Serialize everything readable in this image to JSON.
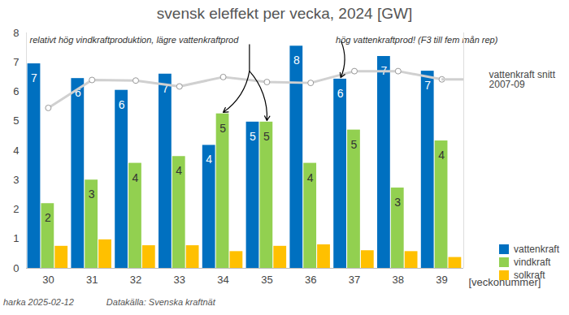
{
  "chart_data": {
    "type": "bar",
    "title": "svensk eleffekt per vecka, 2024 [GW]",
    "x_label": "[veckonummer]",
    "categories": [
      "30",
      "31",
      "32",
      "33",
      "34",
      "35",
      "36",
      "37",
      "38",
      "39"
    ],
    "series": [
      {
        "name": "vattenkraft",
        "color": "#0070c0",
        "values": [
          6.95,
          6.45,
          6.05,
          6.6,
          4.18,
          4.97,
          7.55,
          6.43,
          7.2,
          6.7
        ],
        "value_labels": [
          "7",
          "6",
          "6",
          "7",
          "4",
          "5",
          "8",
          "6",
          "7",
          "7"
        ]
      },
      {
        "name": "vindkraft",
        "color": "#92d050",
        "values": [
          2.2,
          3.0,
          3.57,
          3.8,
          5.25,
          4.97,
          3.57,
          4.7,
          2.73,
          4.33
        ],
        "value_labels": [
          "2",
          "3",
          "4",
          "4",
          "5",
          "5",
          "4",
          "5",
          "3",
          "4"
        ]
      },
      {
        "name": "solkraft",
        "color": "#ffc000",
        "values": [
          0.75,
          0.97,
          0.77,
          0.77,
          0.57,
          0.75,
          0.8,
          0.6,
          0.57,
          0.37
        ]
      },
      {
        "name": "vattenkraft snitt 2007-09",
        "type": "line",
        "color": "#d0d0d0",
        "marker": "circle",
        "values": [
          5.45,
          6.4,
          6.38,
          6.18,
          6.5,
          6.33,
          6.3,
          6.7,
          6.7,
          6.42
        ]
      }
    ],
    "ylim": [
      0,
      8
    ],
    "yticks": [
      0,
      1,
      2,
      3,
      4,
      5,
      6,
      7,
      8
    ],
    "grid": false,
    "legend": "right",
    "data_labels": true,
    "annotations": [
      "relativt hög vindkraftproduktion, lägre vattenkraftprod",
      "hög vattenkraftprod! (F3 till fem mån rep)"
    ],
    "footer": [
      "harka 2025-02-12",
      "Datakälla: Svenska kraftnät"
    ]
  }
}
